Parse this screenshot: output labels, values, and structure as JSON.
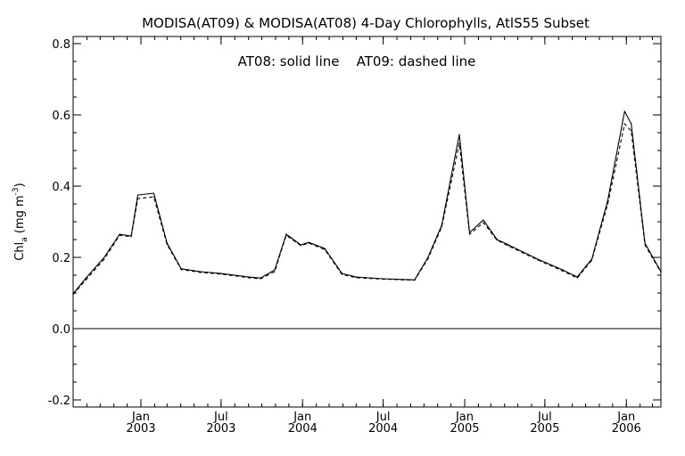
{
  "chart_data": {
    "type": "line",
    "title": "MODISA(AT09) & MODISA(AT08) 4-Day Chlorophylls, AtlS55 Subset",
    "annotation": "AT08: solid line    AT09: dashed line",
    "ylabel": {
      "main": "Chl",
      "sub": "a",
      "units_open": " (mg m",
      "units_sup": "-3",
      "units_close": ")"
    },
    "xlim": [
      "2002-08-01",
      "2006-03-20"
    ],
    "ylim": [
      -0.22,
      0.82
    ],
    "zero_line": 0.0,
    "y_ticks": [
      "-0.2",
      "0.0",
      "0.2",
      "0.4",
      "0.6",
      "0.8"
    ],
    "x_ticks": [
      {
        "date": "2003-01-01",
        "month": "Jan",
        "year": "2003"
      },
      {
        "date": "2003-07-01",
        "month": "Jul",
        "year": "2003"
      },
      {
        "date": "2004-01-01",
        "month": "Jan",
        "year": "2004"
      },
      {
        "date": "2004-07-01",
        "month": "Jul",
        "year": "2004"
      },
      {
        "date": "2005-01-01",
        "month": "Jan",
        "year": "2005"
      },
      {
        "date": "2005-07-01",
        "month": "Jul",
        "year": "2005"
      },
      {
        "date": "2006-01-01",
        "month": "Jan",
        "year": "2006"
      }
    ],
    "series": [
      {
        "name": "AT08",
        "style": "solid",
        "points": [
          [
            "2002-08-01",
            0.098
          ],
          [
            "2002-09-01",
            0.145
          ],
          [
            "2002-10-10",
            0.2
          ],
          [
            "2002-11-14",
            0.265
          ],
          [
            "2002-12-10",
            0.26
          ],
          [
            "2002-12-25",
            0.375
          ],
          [
            "2003-01-30",
            0.38
          ],
          [
            "2003-03-01",
            0.24
          ],
          [
            "2003-04-02",
            0.168
          ],
          [
            "2003-05-15",
            0.16
          ],
          [
            "2003-07-01",
            0.155
          ],
          [
            "2003-09-01",
            0.145
          ],
          [
            "2003-09-28",
            0.142
          ],
          [
            "2003-10-30",
            0.165
          ],
          [
            "2003-11-25",
            0.265
          ],
          [
            "2003-12-28",
            0.235
          ],
          [
            "2004-01-15",
            0.242
          ],
          [
            "2004-02-20",
            0.225
          ],
          [
            "2004-03-30",
            0.155
          ],
          [
            "2004-05-01",
            0.145
          ],
          [
            "2004-07-01",
            0.14
          ],
          [
            "2004-08-15",
            0.138
          ],
          [
            "2004-09-10",
            0.137
          ],
          [
            "2004-10-10",
            0.2
          ],
          [
            "2004-11-10",
            0.29
          ],
          [
            "2004-12-20",
            0.545
          ],
          [
            "2005-01-12",
            0.27
          ],
          [
            "2005-02-12",
            0.305
          ],
          [
            "2005-03-15",
            0.25
          ],
          [
            "2005-04-10",
            0.235
          ],
          [
            "2005-06-15",
            0.195
          ],
          [
            "2005-08-10",
            0.165
          ],
          [
            "2005-09-12",
            0.145
          ],
          [
            "2005-10-15",
            0.195
          ],
          [
            "2005-11-20",
            0.36
          ],
          [
            "2005-12-28",
            0.61
          ],
          [
            "2006-01-12",
            0.575
          ],
          [
            "2006-02-12",
            0.24
          ],
          [
            "2006-03-20",
            0.16
          ]
        ]
      },
      {
        "name": "AT09",
        "style": "dashed",
        "points": [
          [
            "2002-08-01",
            0.096
          ],
          [
            "2002-09-01",
            0.14
          ],
          [
            "2002-10-10",
            0.195
          ],
          [
            "2002-11-14",
            0.262
          ],
          [
            "2002-12-10",
            0.258
          ],
          [
            "2002-12-25",
            0.365
          ],
          [
            "2003-01-30",
            0.37
          ],
          [
            "2003-03-01",
            0.236
          ],
          [
            "2003-04-02",
            0.166
          ],
          [
            "2003-05-15",
            0.158
          ],
          [
            "2003-07-01",
            0.153
          ],
          [
            "2003-09-01",
            0.143
          ],
          [
            "2003-09-28",
            0.14
          ],
          [
            "2003-10-30",
            0.16
          ],
          [
            "2003-11-25",
            0.262
          ],
          [
            "2003-12-28",
            0.233
          ],
          [
            "2004-01-15",
            0.24
          ],
          [
            "2004-02-20",
            0.222
          ],
          [
            "2004-03-30",
            0.152
          ],
          [
            "2004-05-01",
            0.143
          ],
          [
            "2004-07-01",
            0.139
          ],
          [
            "2004-08-15",
            0.137
          ],
          [
            "2004-09-10",
            0.136
          ],
          [
            "2004-10-10",
            0.196
          ],
          [
            "2004-11-10",
            0.285
          ],
          [
            "2004-12-20",
            0.52
          ],
          [
            "2005-01-12",
            0.265
          ],
          [
            "2005-02-12",
            0.298
          ],
          [
            "2005-03-15",
            0.248
          ],
          [
            "2005-04-10",
            0.232
          ],
          [
            "2005-06-15",
            0.193
          ],
          [
            "2005-08-10",
            0.162
          ],
          [
            "2005-09-12",
            0.142
          ],
          [
            "2005-10-15",
            0.192
          ],
          [
            "2005-11-20",
            0.35
          ],
          [
            "2005-12-28",
            0.575
          ],
          [
            "2006-01-12",
            0.555
          ],
          [
            "2006-02-12",
            0.235
          ],
          [
            "2006-03-20",
            0.158
          ]
        ]
      }
    ]
  }
}
